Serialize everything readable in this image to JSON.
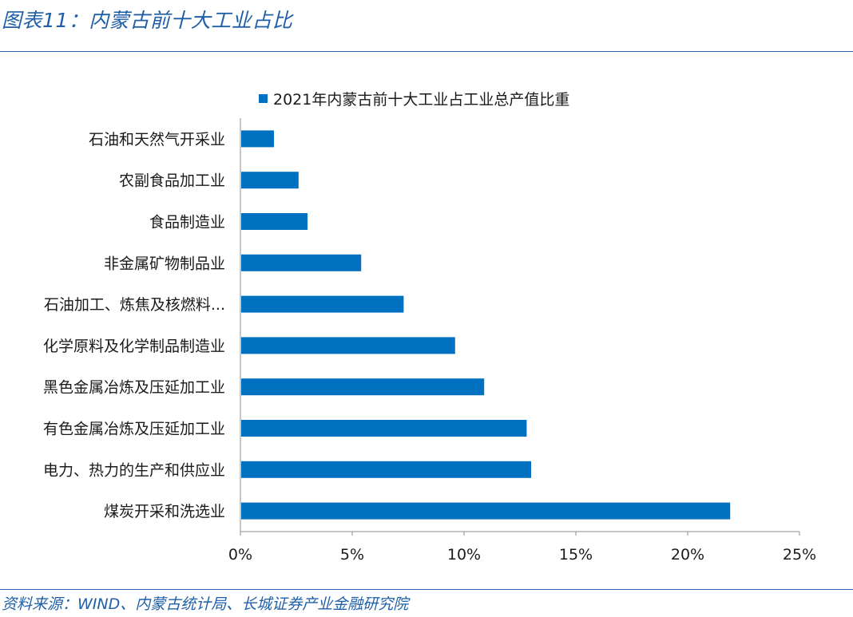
{
  "header": {
    "title": "图表11：内蒙古前十大工业占比"
  },
  "footer": {
    "source": "资料来源：WIND、内蒙古统计局、长城证券产业金融研究院"
  },
  "colors": {
    "bar": "#0070c0",
    "accent": "#1f5fa8",
    "axis": "#8c8c8c"
  },
  "chart_data": {
    "type": "bar",
    "orientation": "horizontal",
    "title": "",
    "xlabel": "",
    "ylabel": "",
    "legend": {
      "position": "top",
      "entries": [
        "2021年内蒙古前十大工业占工业总产值比重"
      ]
    },
    "categories": [
      "石油和天然气开采业",
      "农副食品加工业",
      "食品制造业",
      "非金属矿物制品业",
      "石油加工、炼焦及核燃料...",
      "化学原料及化学制品制造业",
      "黑色金属冶炼及压延加工业",
      "有色金属冶炼及压延加工业",
      "电力、热力的生产和供应业",
      "煤炭开采和洗选业"
    ],
    "series": [
      {
        "name": "2021年内蒙古前十大工业占工业总产值比重",
        "values": [
          1.5,
          2.6,
          3.0,
          5.4,
          7.3,
          9.6,
          10.9,
          12.8,
          13.0,
          21.9
        ]
      }
    ],
    "xlim": [
      0,
      25
    ],
    "xticks": [
      0,
      5,
      10,
      15,
      20,
      25
    ],
    "xtick_labels": [
      "0%",
      "5%",
      "10%",
      "15%",
      "20%",
      "25%"
    ],
    "grid": false
  }
}
